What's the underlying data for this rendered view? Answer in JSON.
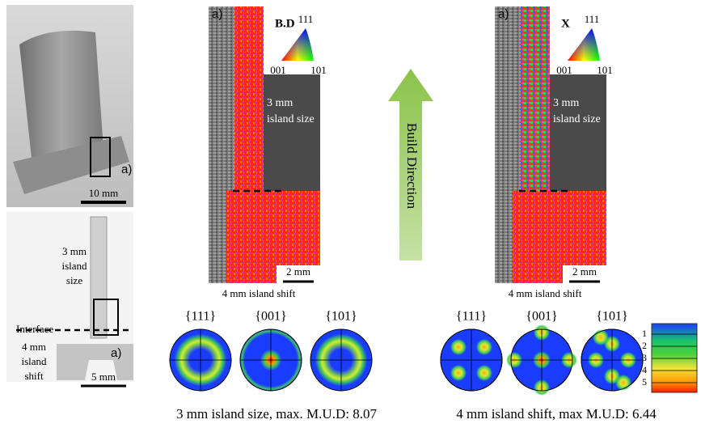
{
  "photo_top": {
    "label": "a)",
    "scale": "10 mm"
  },
  "photo_bottom": {
    "region_top": [
      "3 mm",
      "island",
      "size"
    ],
    "interface": "Interface",
    "region_bottom": [
      "4 mm",
      "island",
      "shift"
    ],
    "label": "a)",
    "scale": "5 mm"
  },
  "arrow_label": "Build Direction",
  "maps": [
    {
      "label": "a)",
      "direction": "B.D",
      "ipf_corners": [
        "111",
        "001",
        "101"
      ],
      "region_text": [
        "3 mm",
        "island size"
      ],
      "scale": "2 mm",
      "shift_text": "4 mm island shift",
      "pole_figures": [
        "{111}",
        "{001}",
        "{101}"
      ],
      "caption": "3 mm island size, max. M.U.D: 8.07"
    },
    {
      "label": "a)",
      "direction": "X",
      "ipf_corners": [
        "111",
        "001",
        "101"
      ],
      "region_text": [
        "3 mm",
        "island size"
      ],
      "scale": "2 mm",
      "shift_text": "4 mm island shift",
      "pole_figures": [
        "{111}",
        "{001}",
        "{101}"
      ],
      "caption": "4 mm island shift, max M.U.D: 6.44"
    }
  ],
  "color_scale": [
    "1",
    "2",
    "3",
    "4",
    "5"
  ]
}
